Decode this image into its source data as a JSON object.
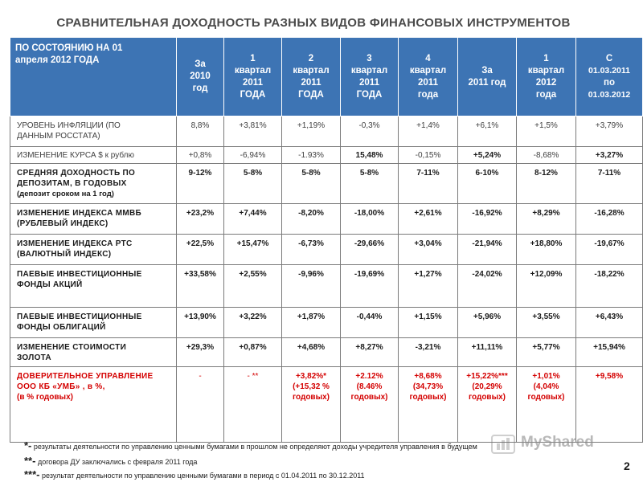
{
  "title": "СРАВНИТЕЛЬНАЯ ДОХОДНОСТЬ РАЗНЫХ ВИДОВ ФИНАНСОВЫХ ИНСТРУМЕНТОВ",
  "header": {
    "col0": [
      "ПО СОСТОЯНИЮ НА 01",
      "апреля 2012 ГОДА"
    ],
    "cols": [
      [
        "За",
        "2010",
        "год"
      ],
      [
        "1",
        "квартал",
        "2011",
        "ГОДА"
      ],
      [
        "2",
        "квартал",
        "2011",
        "ГОДА"
      ],
      [
        "3",
        "квартал",
        "2011",
        "ГОДА"
      ],
      [
        "4",
        "квартал",
        "2011",
        "года"
      ],
      [
        "За",
        "2011 год"
      ],
      [
        "1",
        "квартал",
        "2012",
        "года"
      ],
      [
        "С",
        "01.03.2011",
        "по",
        "01.03.2012"
      ]
    ]
  },
  "rows": [
    {
      "label": [
        "УРОВЕНЬ ИНФЛЯЦИИ (ПО",
        "ДАННЫМ РОССТАТА)"
      ],
      "values": [
        "8,8%",
        "+3,81%",
        "+1,19%",
        "-0,3%",
        "+1,4%",
        "+6,1%",
        "+1,5%",
        "+3,79%"
      ]
    },
    {
      "label": [
        "ИЗМЕНЕНИЕ КУРСА  $ к рублю"
      ],
      "values": [
        "+0,8%",
        "-6,94%",
        "-1.93%",
        "15,48%",
        "-0,15%",
        "+5,24%",
        "-8,68%",
        "+3,27%"
      ]
    },
    {
      "label": [
        "СРЕДНЯЯ ДОХОДНОСТЬ ПО",
        "ДЕПОЗИТАМ, В ГОДОВЫХ"
      ],
      "sub": "(депозит сроком на 1 год)",
      "values": [
        "9-12%",
        "5-8%",
        "5-8%",
        "5-8%",
        "7-11%",
        "6-10%",
        "8-12%",
        "7-11%"
      ]
    },
    {
      "label": [
        "ИЗМЕНЕНИЕ ИНДЕКСА ММВБ",
        "(РУБЛЕВЫЙ ИНДЕКС)"
      ],
      "values": [
        "+23,2%",
        "+7,44%",
        "-8,20%",
        "-18,00%",
        "+2,61%",
        "-16,92%",
        "+8,29%",
        "-16,28%"
      ]
    },
    {
      "label": [
        "ИЗМЕНЕНИЕ ИНДЕКСА РТС",
        "(ВАЛЮТНЫЙ ИНДЕКС)"
      ],
      "values": [
        "+22,5%",
        "+15,47%",
        "-6,73%",
        "-29,66%",
        "+3,04%",
        "-21,94%",
        "+18,80%",
        "-19,67%"
      ]
    },
    {
      "label": [
        "ПАЕВЫЕ ИНВЕСТИЦИОННЫЕ",
        "ФОНДЫ АКЦИЙ"
      ],
      "values": [
        "+33,58%",
        "+2,55%",
        "-9,96%",
        "-19,69%",
        "+1,27%",
        "-24,02%",
        "+12,09%",
        "-18,22%"
      ]
    },
    {
      "label": [
        "ПАЕВЫЕ ИНВЕСТИЦИОННЫЕ",
        "ФОНДЫ ОБЛИГАЦИЙ"
      ],
      "values": [
        "+13,90%",
        "+3,22%",
        "+1,87%",
        "-0,44%",
        "+1,15%",
        "+5,96%",
        "+3,55%",
        "+6,43%"
      ]
    },
    {
      "label": [
        "ИЗМЕНЕНИЕ СТОИМОСТИ",
        "ЗОЛОТА"
      ],
      "values": [
        "+29,3%",
        "+0,87%",
        "+4,68%",
        "+8,27%",
        "-3,21%",
        "+11,11%",
        "+5,77%",
        "+15,94%"
      ]
    },
    {
      "label": [
        "ДОВЕРИТЕЛЬНОЕ УПРАВЛЕНИЕ",
        "ООО КБ «УМБ» , в %,"
      ],
      "sub": "(в % годовых)",
      "values": [
        [
          "-"
        ],
        [
          "- **"
        ],
        [
          "+3,82%*",
          "(+15,32 %",
          "годовых)"
        ],
        [
          "+2.12%",
          "(8.46%",
          "годовых)"
        ],
        [
          "+8,68%",
          "(34,73%",
          "годовых)"
        ],
        [
          "+15,22%***",
          "(20,29%",
          "годовых)"
        ],
        [
          "+1,01%",
          "(4,04%",
          "годовых)"
        ],
        [
          "+9,58%"
        ]
      ]
    }
  ],
  "footnotes": [
    {
      "mark": "*-",
      "text": "результаты деятельности по управлению ценными бумагами в прошлом не определяют доходы учредителя управления в будущем"
    },
    {
      "mark": "**-",
      "text": "договора ДУ заключались с февраля 2011 года"
    },
    {
      "mark": "***-",
      "text": "результат деятельности по управлению ценными бумагами  в период с 01.04.2011 по 30.12.2011"
    }
  ],
  "watermark": "MyShared",
  "page_number": "2"
}
